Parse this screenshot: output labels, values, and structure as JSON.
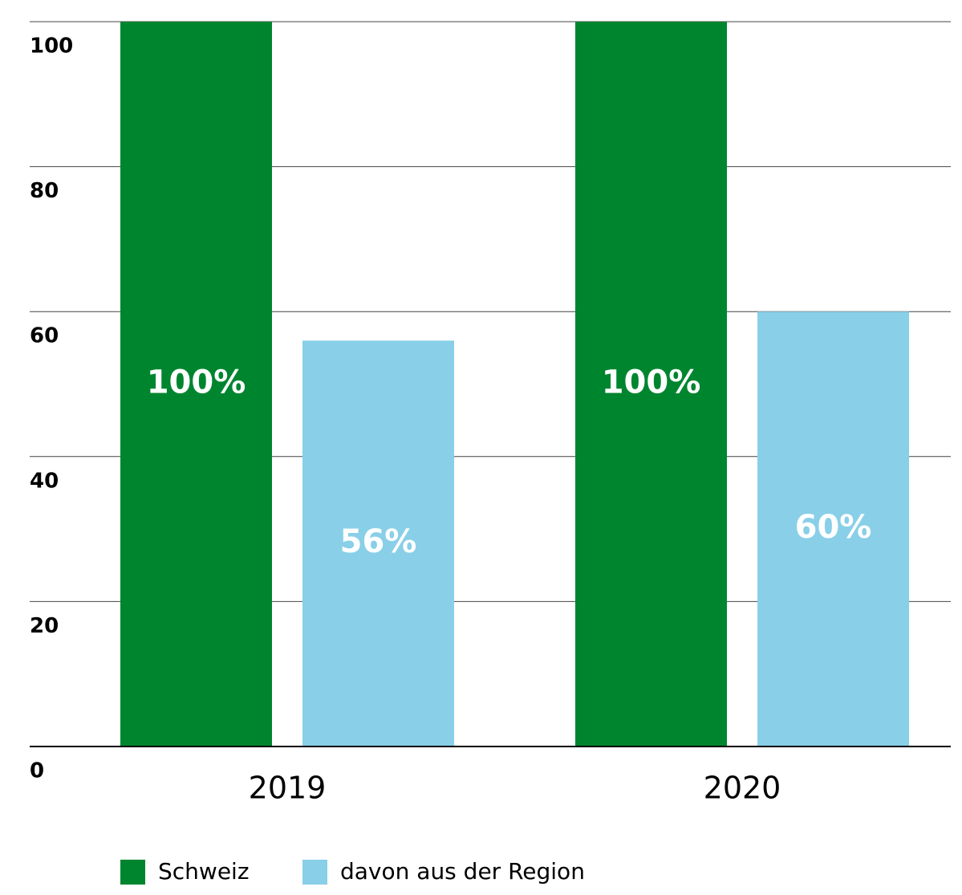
{
  "chart_data": {
    "type": "bar",
    "categories": [
      "2019",
      "2020"
    ],
    "series": [
      {
        "name": "Schweiz",
        "color": "#00852f",
        "values": [
          100,
          100
        ],
        "value_labels": [
          "100%",
          "100%"
        ]
      },
      {
        "name": "davon aus der Region",
        "color": "#89cfe8",
        "values": [
          56,
          60
        ],
        "value_labels": [
          "56%",
          "60%"
        ]
      }
    ],
    "ylim": [
      0,
      100
    ],
    "yticks": [
      0,
      20,
      40,
      60,
      80,
      100
    ],
    "grid": true
  }
}
